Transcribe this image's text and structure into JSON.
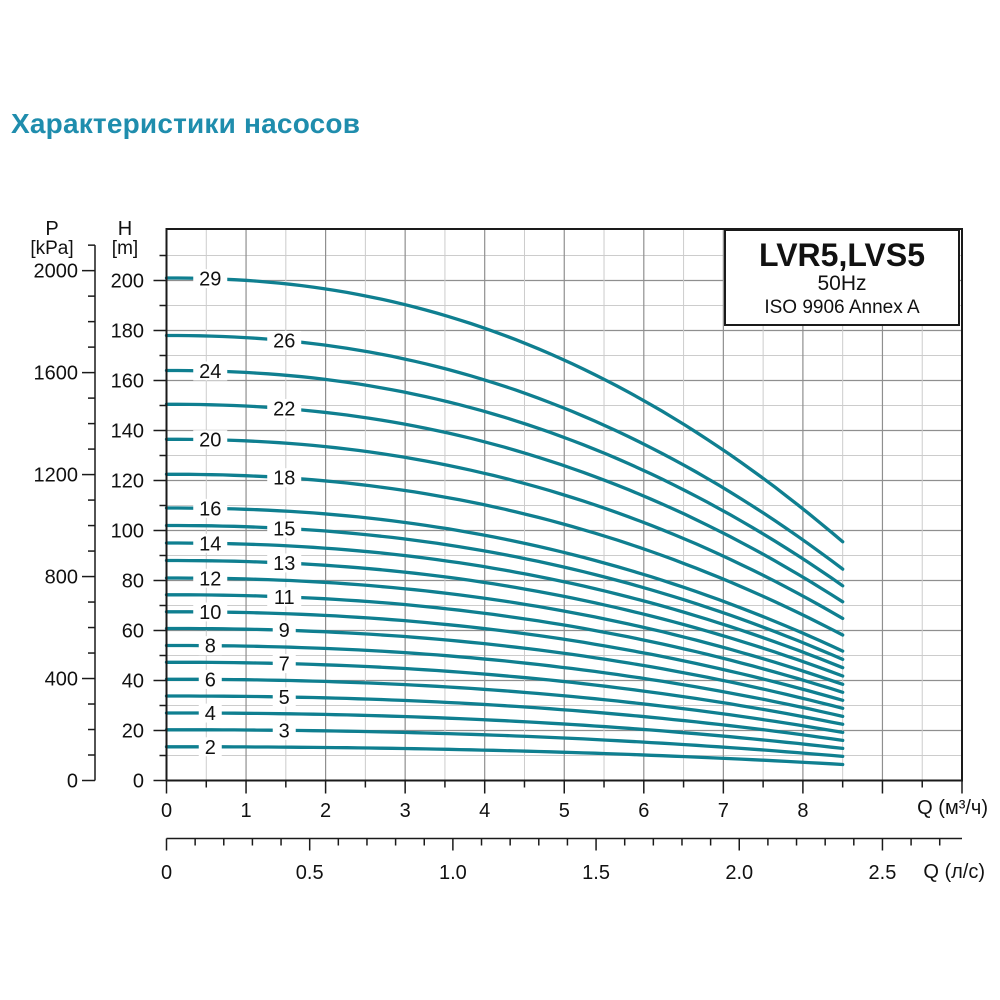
{
  "page": {
    "title": "Характеристики насосов",
    "title_color": "#1f8dad"
  },
  "chart_data": {
    "type": "line",
    "info_box": {
      "models": "LVR5,LVS5",
      "frequency": "50Hz",
      "standard": "ISO 9906 Annex A"
    },
    "x_axis_primary": {
      "label": "Q (м³/ч)",
      "min": 0,
      "max": 10,
      "minor_step": 0.5,
      "major_step": 1,
      "tick_labels": [
        0,
        1,
        2,
        3,
        4,
        5,
        6,
        7,
        8
      ]
    },
    "x_axis_secondary": {
      "label": "Q (л/с)",
      "min": 0,
      "max": 2.7,
      "minor_step": 0.1,
      "major_step": 0.5,
      "tick_labels": [
        0,
        0.5,
        1.0,
        1.5,
        2.0,
        2.5
      ],
      "units_per_primary": 0.27778
    },
    "y_axis_primary": {
      "name": "H",
      "unit": "[m]",
      "min": 0,
      "max": 220,
      "minor_step": 10,
      "major_step": 20,
      "tick_labels": [
        0,
        20,
        40,
        60,
        80,
        100,
        120,
        140,
        160,
        180,
        200
      ]
    },
    "y_axis_secondary": {
      "name": "P",
      "unit": "[kPa]",
      "min": 0,
      "max": 2100,
      "minor_step": 100,
      "major_step": 400,
      "tick_labels": [
        0,
        400,
        800,
        1200,
        1600,
        2000
      ],
      "kpa_per_m": 9.80665
    },
    "curves": {
      "q_start": 0,
      "q_end": 8.5,
      "end_head_ratio": 0.475,
      "shape_exponent": 2.2,
      "color": "#0f7f90",
      "label_columns_q": [
        0.55,
        1.48
      ],
      "stages": [
        {
          "label": "2",
          "h0_m": 13.5
        },
        {
          "label": "3",
          "h0_m": 20.3
        },
        {
          "label": "4",
          "h0_m": 27.0
        },
        {
          "label": "5",
          "h0_m": 33.8
        },
        {
          "label": "6",
          "h0_m": 40.5
        },
        {
          "label": "7",
          "h0_m": 47.3
        },
        {
          "label": "8",
          "h0_m": 54.0
        },
        {
          "label": "9",
          "h0_m": 60.8
        },
        {
          "label": "10",
          "h0_m": 67.5
        },
        {
          "label": "11",
          "h0_m": 74.3
        },
        {
          "label": "12",
          "h0_m": 81.0
        },
        {
          "label": "13",
          "h0_m": 88.0
        },
        {
          "label": "14",
          "h0_m": 95.0
        },
        {
          "label": "15",
          "h0_m": 102.0
        },
        {
          "label": "16",
          "h0_m": 109.0
        },
        {
          "label": "18",
          "h0_m": 122.5
        },
        {
          "label": "20",
          "h0_m": 136.5
        },
        {
          "label": "22",
          "h0_m": 150.5
        },
        {
          "label": "24",
          "h0_m": 164.0
        },
        {
          "label": "26",
          "h0_m": 178.0
        },
        {
          "label": "29",
          "h0_m": 201.0
        }
      ]
    },
    "grid": {
      "minor_color": "#cccccc",
      "major_color": "#8f8f8f",
      "frame_color": "#1a1a1a",
      "text_color": "#111111"
    }
  }
}
